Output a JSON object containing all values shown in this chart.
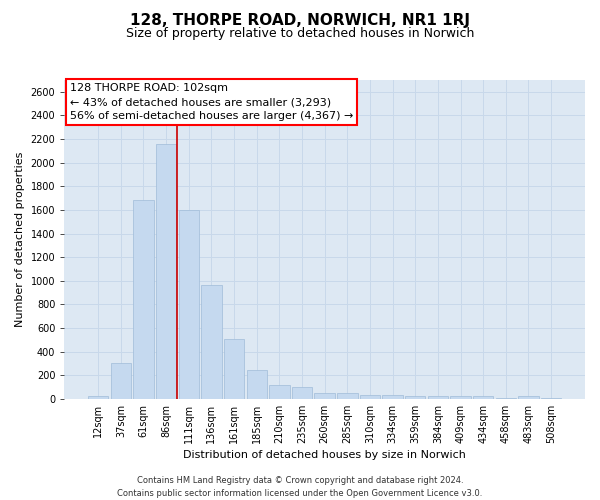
{
  "title": "128, THORPE ROAD, NORWICH, NR1 1RJ",
  "subtitle": "Size of property relative to detached houses in Norwich",
  "xlabel": "Distribution of detached houses by size in Norwich",
  "ylabel": "Number of detached properties",
  "footer_line1": "Contains HM Land Registry data © Crown copyright and database right 2024.",
  "footer_line2": "Contains public sector information licensed under the Open Government Licence v3.0.",
  "annotation_title": "128 THORPE ROAD: 102sqm",
  "annotation_line1": "← 43% of detached houses are smaller (3,293)",
  "annotation_line2": "56% of semi-detached houses are larger (4,367) →",
  "bar_labels": [
    "12sqm",
    "37sqm",
    "61sqm",
    "86sqm",
    "111sqm",
    "136sqm",
    "161sqm",
    "185sqm",
    "210sqm",
    "235sqm",
    "260sqm",
    "285sqm",
    "310sqm",
    "334sqm",
    "359sqm",
    "384sqm",
    "409sqm",
    "434sqm",
    "458sqm",
    "483sqm",
    "508sqm"
  ],
  "bar_values": [
    25,
    300,
    1680,
    2160,
    1600,
    960,
    505,
    240,
    120,
    100,
    50,
    50,
    30,
    30,
    20,
    20,
    20,
    20,
    10,
    20,
    10
  ],
  "bar_color": "#c5d9ef",
  "bar_edge_color": "#a0bcd8",
  "vline_color": "#cc0000",
  "vline_x_idx": 3.5,
  "ylim_max": 2700,
  "yticks": [
    0,
    200,
    400,
    600,
    800,
    1000,
    1200,
    1400,
    1600,
    1800,
    2000,
    2200,
    2400,
    2600
  ],
  "grid_color": "#c8d8ea",
  "bg_color": "#dde8f3",
  "title_fontsize": 11,
  "subtitle_fontsize": 9,
  "ylabel_fontsize": 8,
  "xlabel_fontsize": 8,
  "tick_fontsize": 7,
  "footer_fontsize": 6,
  "annotation_fontsize": 8
}
